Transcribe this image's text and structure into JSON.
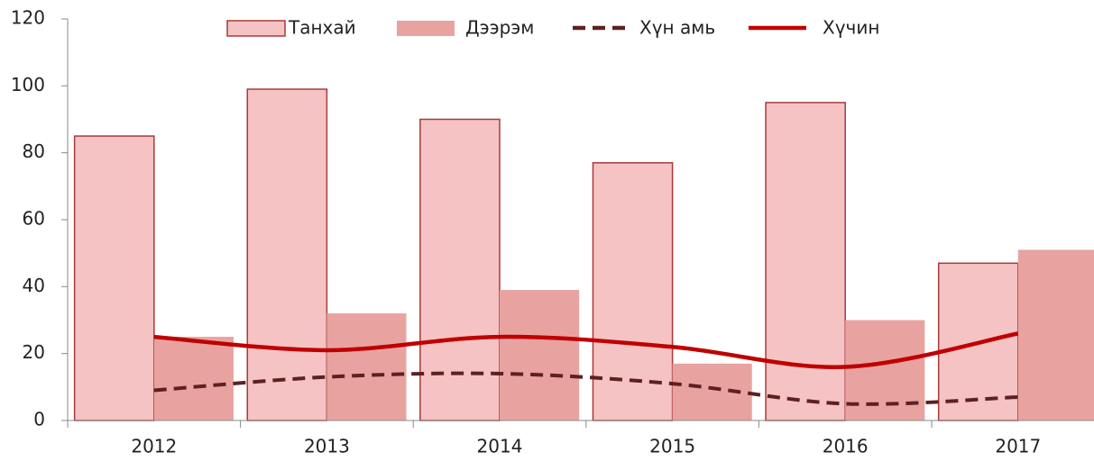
{
  "chart_data": {
    "type": "bar-line",
    "categories": [
      "2012",
      "2013",
      "2014",
      "2015",
      "2016",
      "2017"
    ],
    "series": [
      {
        "name": "Танхай",
        "type": "bar",
        "color": "#f5c3c3",
        "edge": "#a83a3a",
        "values": [
          85,
          99,
          90,
          77,
          95,
          47
        ]
      },
      {
        "name": "Дээрэм",
        "type": "bar",
        "color": "#e8a3a1",
        "values": [
          25,
          32,
          39,
          17,
          30,
          51
        ]
      },
      {
        "name": "Хүн амь",
        "type": "line",
        "dashed": true,
        "color": "#5e2020",
        "values": [
          9,
          13,
          14,
          11,
          5,
          7
        ]
      },
      {
        "name": "Хүчин",
        "type": "line",
        "color": "#c00000",
        "values": [
          25,
          21,
          25,
          22,
          16,
          26
        ]
      }
    ],
    "ylim": [
      0,
      120
    ],
    "yticks": [
      0,
      20,
      40,
      60,
      80,
      100,
      120
    ],
    "legend": "top"
  }
}
